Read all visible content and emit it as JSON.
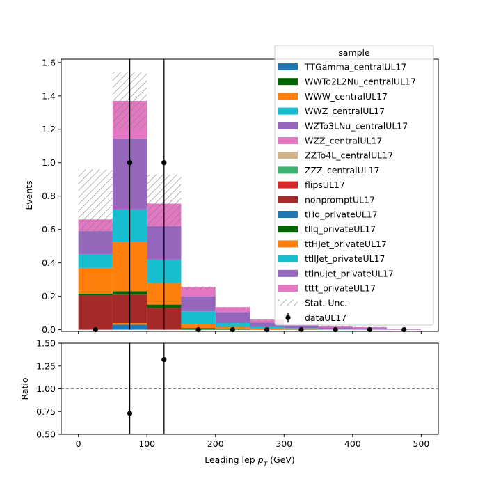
{
  "chart_data": [
    {
      "type": "stacked-bar-histogram",
      "xlabel": "Leading lep",
      "xlabel_math_base": "p",
      "xlabel_math_sub": "T",
      "xlabel_unit": "(GeV)",
      "ylabel": "Events",
      "xlim": [
        -25,
        525
      ],
      "ylim": [
        -0.01,
        1.62
      ],
      "xticks": [
        "0",
        "100",
        "200",
        "300",
        "400",
        "500"
      ],
      "xtick_values": [
        0,
        100,
        200,
        300,
        400,
        500
      ],
      "yticks": [
        "0.0",
        "0.2",
        "0.4",
        "0.6",
        "0.8",
        "1.0",
        "1.2",
        "1.4",
        "1.6"
      ],
      "ytick_values": [
        0,
        0.2,
        0.4,
        0.6,
        0.8,
        1.0,
        1.2,
        1.4,
        1.6
      ],
      "bin_edges": [
        0,
        50,
        100,
        150,
        200,
        250,
        300,
        350,
        400,
        450,
        500
      ],
      "legend_title": "sample",
      "legend_position": "top-right",
      "series": [
        {
          "name": "TTGamma_centralUL17",
          "color": "#1f77b4",
          "values": [
            0,
            0.03,
            0,
            0,
            0,
            0,
            0,
            0,
            0,
            0
          ]
        },
        {
          "name": "WWTo2L2Nu_centralUL17",
          "color": "#006400",
          "values": [
            0,
            0,
            0,
            0,
            0,
            0,
            0,
            0,
            0,
            0
          ]
        },
        {
          "name": "WWW_centralUL17",
          "color": "#ff7f0e",
          "values": [
            0,
            0.01,
            0,
            0,
            0,
            0,
            0,
            0,
            0,
            0
          ]
        },
        {
          "name": "WWZ_centralUL17",
          "color": "#17becf",
          "values": [
            0,
            0,
            0,
            0,
            0,
            0,
            0,
            0,
            0,
            0
          ]
        },
        {
          "name": "WZTo3LNu_centralUL17",
          "color": "#9467bd",
          "values": [
            0,
            0,
            0,
            0,
            0,
            0,
            0,
            0,
            0,
            0
          ]
        },
        {
          "name": "WZZ_centralUL17",
          "color": "#e377c2",
          "values": [
            0,
            0,
            0,
            0,
            0,
            0,
            0,
            0,
            0,
            0
          ]
        },
        {
          "name": "ZZTo4L_centralUL17",
          "color": "#d2b48c",
          "values": [
            0,
            0,
            0,
            0,
            0,
            0,
            0,
            0,
            0,
            0
          ]
        },
        {
          "name": "ZZZ_centralUL17",
          "color": "#3cb371",
          "values": [
            0,
            0,
            0,
            0,
            0,
            0,
            0,
            0,
            0,
            0
          ]
        },
        {
          "name": "flipsUL17",
          "color": "#d62728",
          "values": [
            0,
            0,
            0,
            0,
            0,
            0,
            0,
            0,
            0,
            0
          ]
        },
        {
          "name": "nonpromptUL17",
          "color": "#a52a2a",
          "values": [
            0.205,
            0.17,
            0.13,
            0,
            0,
            0,
            0,
            0,
            0,
            0
          ]
        },
        {
          "name": "tHq_privateUL17",
          "color": "#1f77b4",
          "values": [
            0,
            0,
            0,
            0,
            0,
            0,
            0,
            0,
            0,
            0
          ]
        },
        {
          "name": "tllq_privateUL17",
          "color": "#006400",
          "values": [
            0.01,
            0.02,
            0.02,
            0.01,
            0.005,
            0.002,
            0.002,
            0,
            0,
            0
          ]
        },
        {
          "name": "ttHJet_privateUL17",
          "color": "#ff7f0e",
          "values": [
            0.155,
            0.295,
            0.13,
            0.025,
            0.01,
            0.005,
            0.003,
            0,
            0,
            0
          ]
        },
        {
          "name": "ttllJet_privateUL17",
          "color": "#17becf",
          "values": [
            0.08,
            0.195,
            0.14,
            0.075,
            0.025,
            0.01,
            0.005,
            0.003,
            0,
            0
          ]
        },
        {
          "name": "ttlnuJet_privateUL17",
          "color": "#9467bd",
          "values": [
            0.14,
            0.425,
            0.2,
            0.09,
            0.065,
            0.025,
            0.015,
            0.01,
            0.01,
            0.003
          ]
        },
        {
          "name": "tttt_privateUL17",
          "color": "#e377c2",
          "values": [
            0.07,
            0.225,
            0.135,
            0.055,
            0.03,
            0.018,
            0.01,
            0.007,
            0.005,
            0.002
          ]
        }
      ],
      "stat_unc": {
        "name": "Stat. Unc.",
        "low": [
          0.51,
          1.2,
          0.62,
          0.24,
          0.13,
          0.05,
          0.03,
          0.015,
          0.012,
          0.004
        ],
        "high": [
          0.96,
          1.54,
          0.93,
          0.26,
          0.135,
          0.06,
          0.04,
          0.025,
          0.018,
          0.006
        ]
      },
      "data": {
        "name": "dataUL17",
        "x": [
          25,
          75,
          125,
          175,
          225,
          275,
          325,
          375,
          425,
          475
        ],
        "y": [
          0,
          1,
          1,
          0,
          0,
          0,
          0,
          0,
          0,
          0
        ],
        "yerr": [
          0,
          1,
          1,
          0,
          0,
          0,
          0,
          0,
          0,
          0
        ]
      }
    },
    {
      "type": "scatter",
      "ylabel": "Ratio",
      "xlim": [
        -25,
        525
      ],
      "ylim": [
        0.5,
        1.5
      ],
      "xticks": [
        "0",
        "100",
        "200",
        "300",
        "400",
        "500"
      ],
      "xtick_values": [
        0,
        100,
        200,
        300,
        400,
        500
      ],
      "yticks": [
        "0.50",
        "0.75",
        "1.00",
        "1.25",
        "1.50"
      ],
      "ytick_values": [
        0.5,
        0.75,
        1.0,
        1.25,
        1.5
      ],
      "reference_line": 1.0,
      "points": {
        "x": [
          75,
          125
        ],
        "y": [
          0.73,
          1.32
        ]
      }
    }
  ]
}
